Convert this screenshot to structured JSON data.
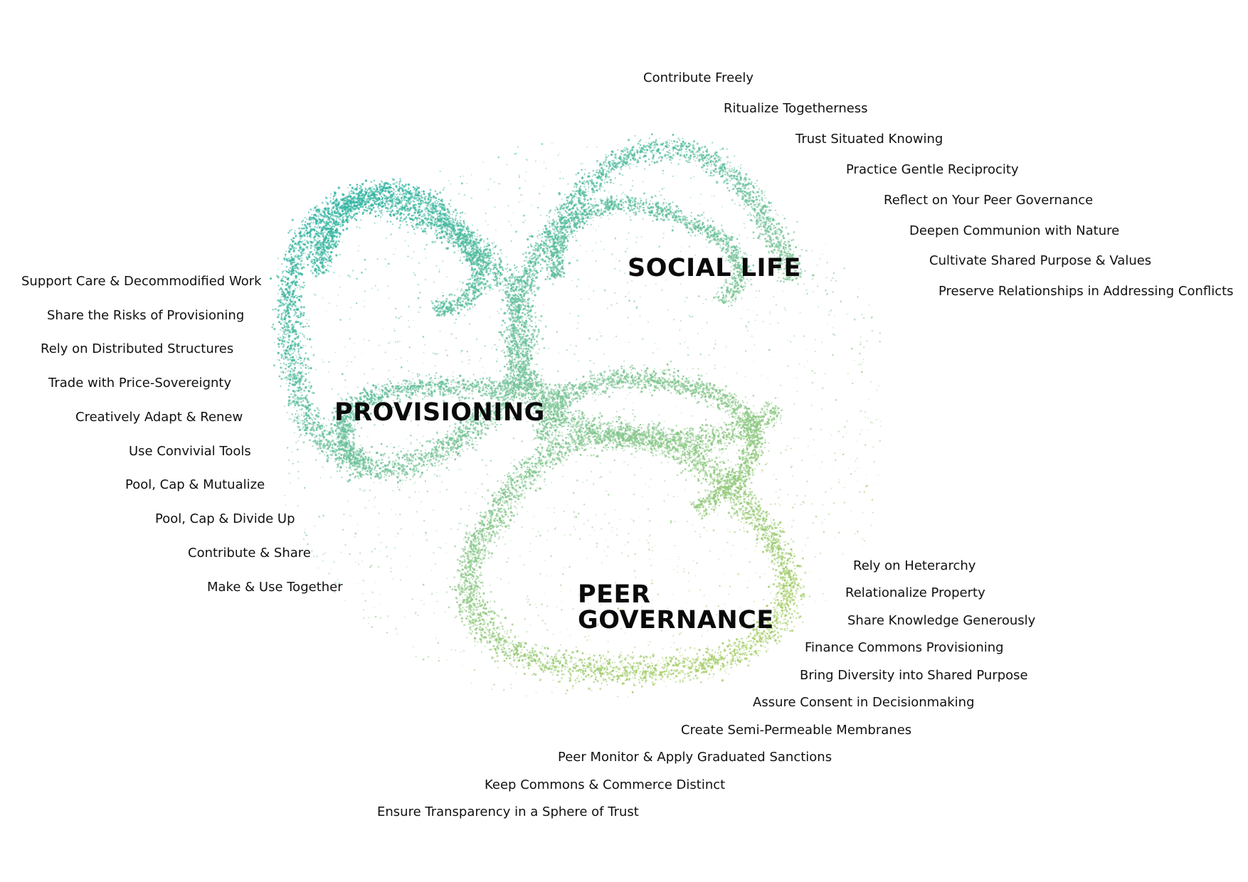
{
  "colors": {
    "teal": "#2bb3a5",
    "mint": "#7cc59a",
    "lime": "#a8cf6d",
    "text": "#111111"
  },
  "hubs": {
    "social_life": "SOCIAL LIFE",
    "provisioning": "PROVISIONING",
    "peer_governance_line1": "PEER",
    "peer_governance_line2": "GOVERNANCE"
  },
  "social_life_patterns": [
    "Contribute Freely",
    "Ritualize Togetherness",
    "Trust Situated Knowing",
    "Practice Gentle Reciprocity",
    "Reflect on Your Peer Governance",
    "Deepen Communion with Nature",
    "Cultivate Shared Purpose & Values",
    "Preserve Relationships in Addressing Conflicts"
  ],
  "provisioning_patterns": [
    "Support Care & Decommodified Work",
    "Share the Risks of Provisioning",
    "Rely on Distributed Structures",
    "Trade with Price-Sovereignty",
    "Creatively Adapt & Renew",
    "Use Convivial Tools",
    "Pool, Cap & Mutualize",
    "Pool, Cap & Divide Up",
    "Contribute & Share",
    "Make & Use Together"
  ],
  "peer_governance_patterns": [
    "Rely on Heterarchy",
    "Relationalize Property",
    "Share Knowledge Generously",
    "Finance Commons Provisioning",
    "Bring Diversity into Shared Purpose",
    "Assure Consent in Decisionmaking",
    "Create Semi-Permeable Membranes",
    "Peer Monitor & Apply Graduated Sanctions",
    "Keep Commons & Commerce Distinct",
    "Ensure Transparency in a Sphere of Trust"
  ]
}
